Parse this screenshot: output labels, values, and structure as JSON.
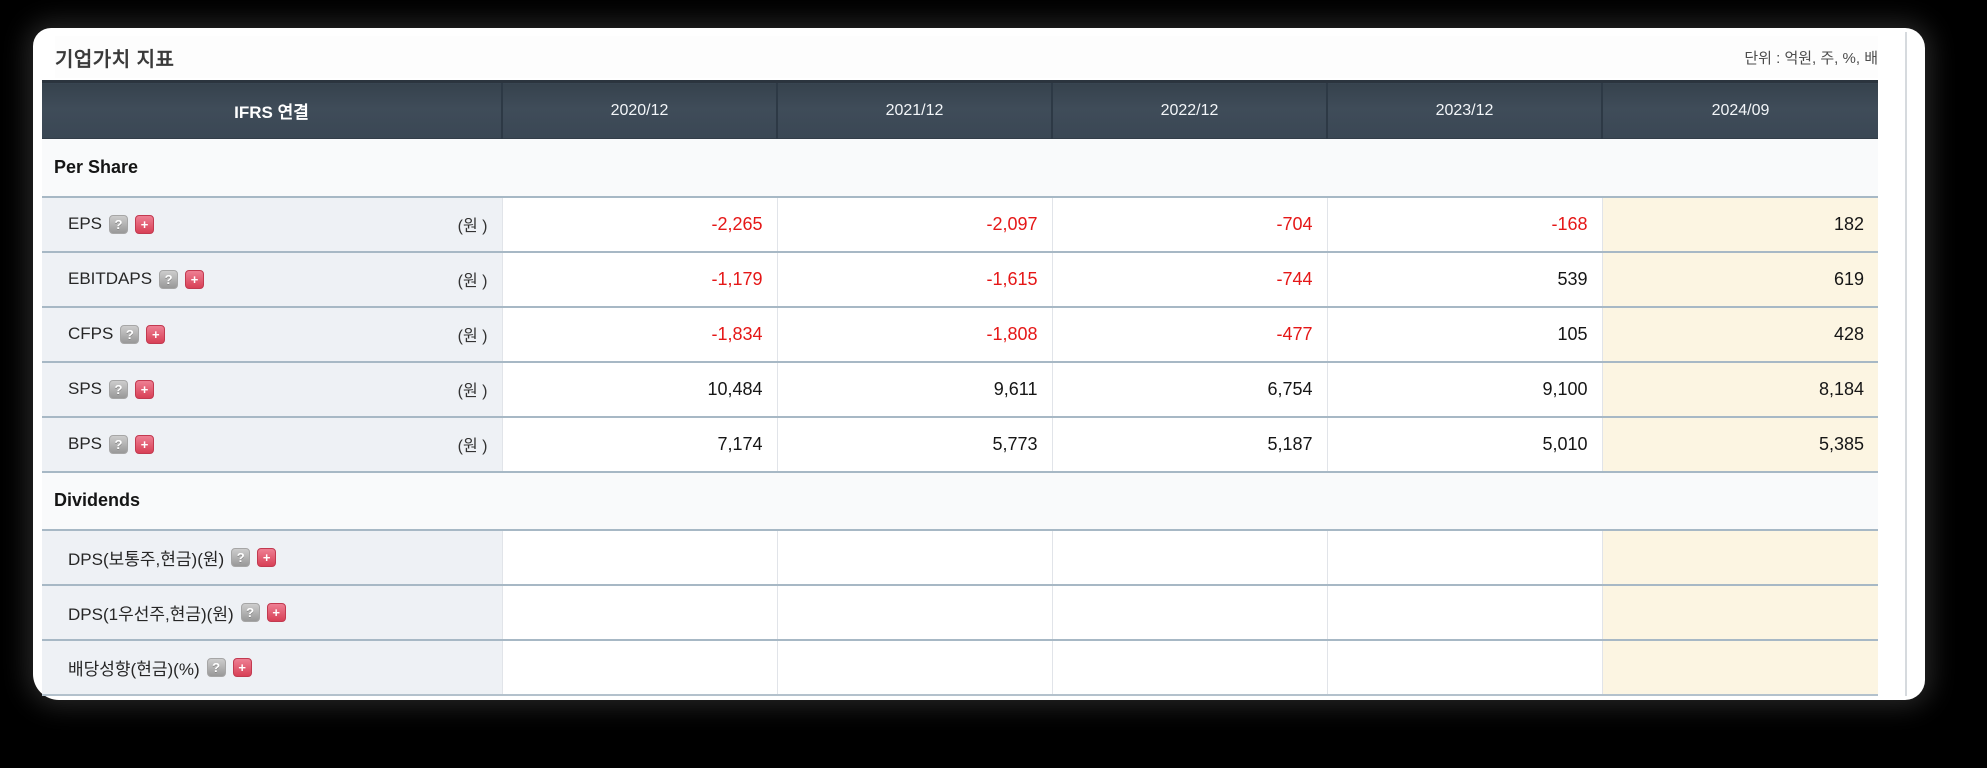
{
  "title": "기업가치 지표",
  "unit_note": "단위 : 억원, 주, %, 배",
  "icons": {
    "help_glyph": "?",
    "plus_glyph": "+"
  },
  "header": {
    "label": "IFRS 연결",
    "periods": [
      "2020/12",
      "2021/12",
      "2022/12",
      "2023/12",
      "2024/09"
    ]
  },
  "sections": {
    "per_share": "Per Share",
    "dividends": "Dividends"
  },
  "rows": {
    "eps": {
      "label": "EPS",
      "unit": "(원 )",
      "values": [
        "-2,265",
        "-2,097",
        "-704",
        "-168",
        "182"
      ]
    },
    "ebitdaps": {
      "label": "EBITDAPS",
      "unit": "(원 )",
      "values": [
        "-1,179",
        "-1,615",
        "-744",
        "539",
        "619"
      ]
    },
    "cfps": {
      "label": "CFPS",
      "unit": "(원 )",
      "values": [
        "-1,834",
        "-1,808",
        "-477",
        "105",
        "428"
      ]
    },
    "sps": {
      "label": "SPS",
      "unit": "(원 )",
      "values": [
        "10,484",
        "9,611",
        "6,754",
        "9,100",
        "8,184"
      ]
    },
    "bps": {
      "label": "BPS",
      "unit": "(원 )",
      "values": [
        "7,174",
        "5,773",
        "5,187",
        "5,010",
        "5,385"
      ]
    },
    "dps_common": {
      "label": "DPS(보통주,현금)(원)",
      "unit": "",
      "values": [
        "",
        "",
        "",
        "",
        ""
      ]
    },
    "dps_pref": {
      "label": "DPS(1우선주,현금)(원)",
      "unit": "",
      "values": [
        "",
        "",
        "",
        "",
        ""
      ]
    },
    "payout": {
      "label": "배당성향(현금)(%)",
      "unit": "",
      "values": [
        "",
        "",
        "",
        "",
        ""
      ]
    }
  },
  "colors": {
    "negative_value": "#e51717",
    "header_bg": "#3e4b58",
    "highlight_column_bg": "#fcf5e2",
    "label_cell_bg": "#eef1f5",
    "plus_icon_bg": "#d84056",
    "help_icon_bg": "#9c9c9c"
  }
}
